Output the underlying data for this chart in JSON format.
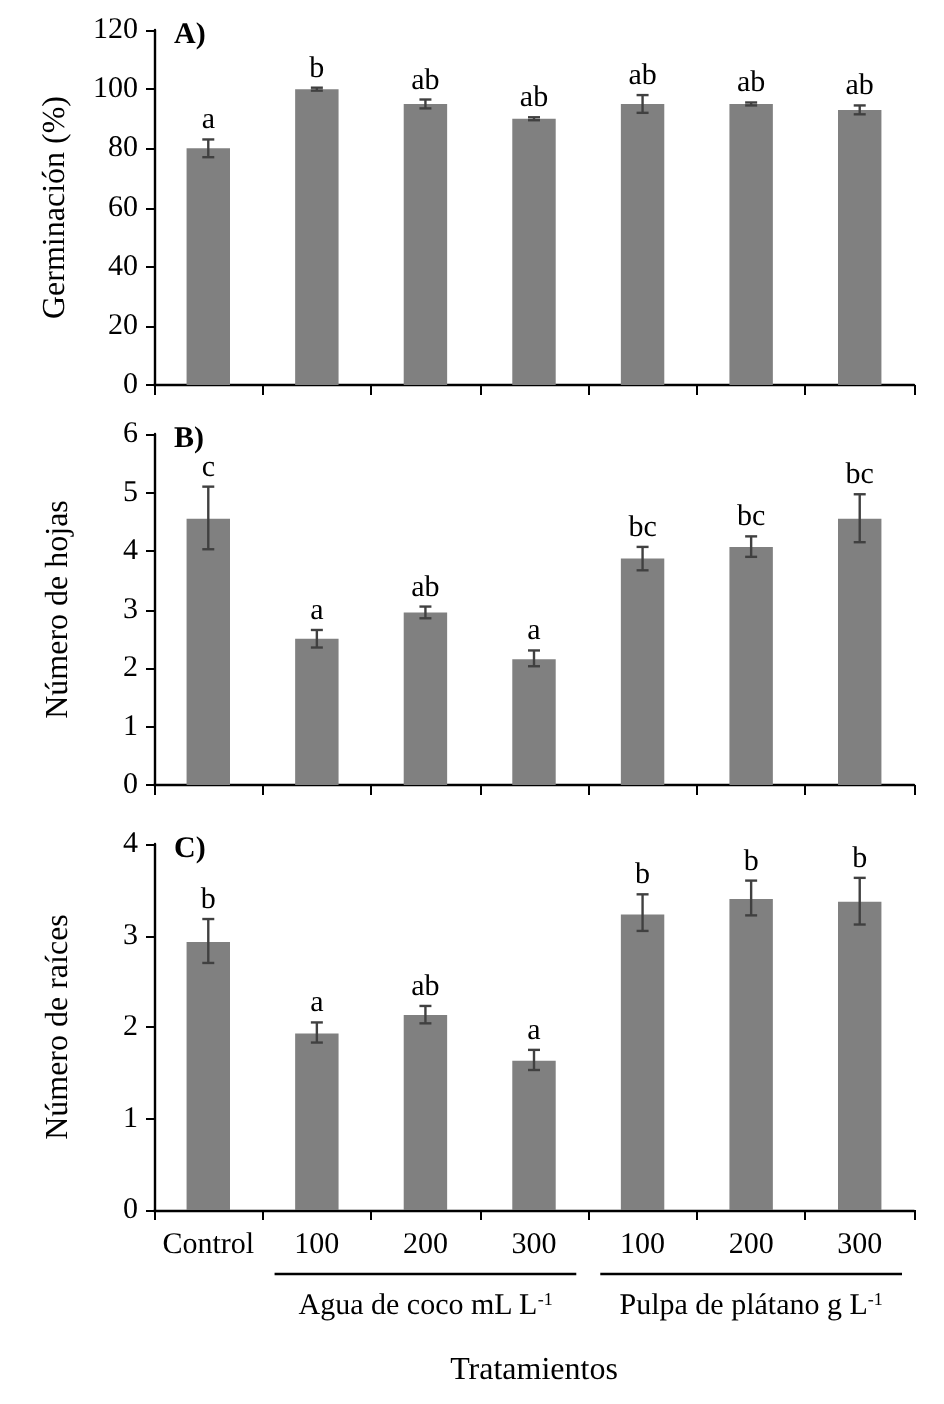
{
  "chart_data": [
    {
      "type": "bar",
      "title": "A)",
      "ylabel": "Germinación (%)",
      "categories": [
        null,
        null,
        null,
        null,
        null,
        null,
        null
      ],
      "color": "#808080",
      "tick_labels": "y",
      "values": [
        80,
        100,
        95,
        90,
        95,
        95,
        93
      ],
      "errors": [
        3,
        0.5,
        1.5,
        0.5,
        3,
        0.5,
        1.5
      ],
      "value_labels": [
        "a",
        "b",
        "ab",
        "ab",
        "ab",
        "ab",
        "ab"
      ],
      "ylim": [
        0,
        120
      ],
      "yticks": [
        0,
        20,
        40,
        60,
        80,
        100,
        120
      ]
    },
    {
      "type": "bar",
      "title": "B)",
      "ylabel": "Número de hojas",
      "categories": [
        null,
        null,
        null,
        null,
        null,
        null,
        null
      ],
      "color": "#808080",
      "tick_labels": "y",
      "values": [
        4.55,
        2.5,
        2.95,
        2.15,
        3.87,
        4.07,
        4.55
      ],
      "errors": [
        [
          4.03,
          5.1
        ],
        [
          2.35,
          2.65
        ],
        [
          2.85,
          3.05
        ],
        [
          2.03,
          2.3
        ],
        [
          3.67,
          4.07
        ],
        [
          3.9,
          4.25
        ],
        [
          4.15,
          4.97
        ]
      ],
      "value_labels": [
        "c",
        "a",
        "ab",
        "a",
        "bc",
        "bc",
        "bc"
      ],
      "ylim": [
        0,
        6
      ],
      "yticks": [
        0,
        1,
        2,
        3,
        4,
        5,
        6
      ]
    },
    {
      "type": "bar",
      "title": "C)",
      "ylabel": "Número de raíces",
      "xlabel": "Tratamientos",
      "categories": [
        "Control",
        "100",
        "200",
        "300",
        "100",
        "200",
        "300"
      ],
      "color": "#808080",
      "values": [
        2.93,
        1.93,
        2.13,
        1.63,
        3.23,
        3.4,
        3.37
      ],
      "errors": [
        [
          2.7,
          3.18
        ],
        [
          1.83,
          2.05
        ],
        [
          2.04,
          2.23
        ],
        [
          1.53,
          1.75
        ],
        [
          3.05,
          3.45
        ],
        [
          3.22,
          3.6
        ],
        [
          3.12,
          3.63
        ]
      ],
      "value_labels": [
        "b",
        "a",
        "ab",
        "a",
        "b",
        "b",
        "b"
      ],
      "ylim": [
        0,
        4
      ],
      "yticks": [
        0,
        1,
        2,
        3,
        4
      ],
      "annotations": [
        "Agua de coco mL L$^{-1}$",
        "Pulpa de plátano g L$^{-1}$"
      ]
    }
  ]
}
